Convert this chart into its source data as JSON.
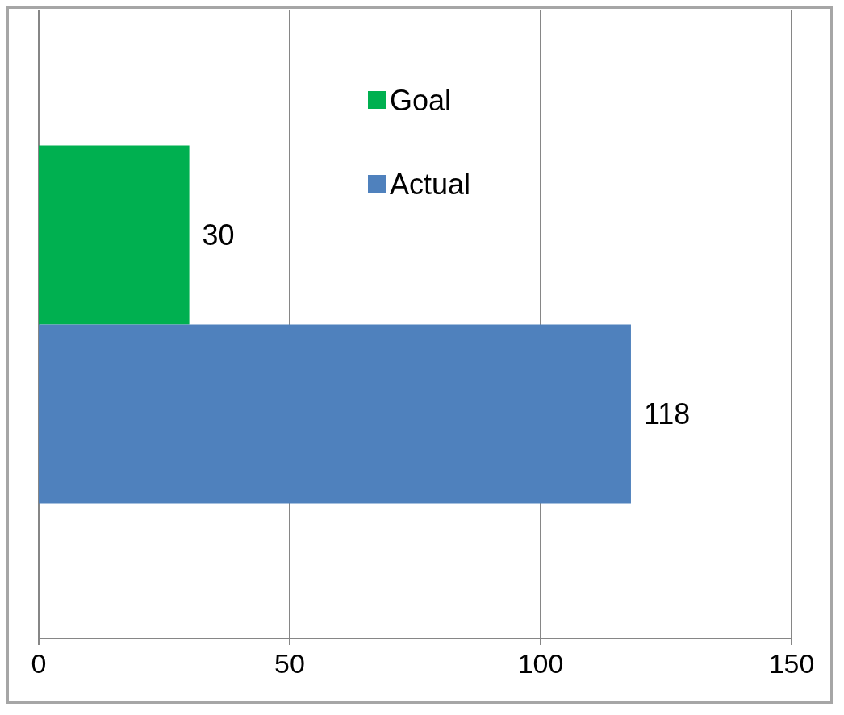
{
  "chart_data": {
    "type": "bar",
    "orientation": "horizontal",
    "categories": [
      null
    ],
    "series": [
      {
        "name": "Goal",
        "color": "#00b050",
        "values": [
          30
        ]
      },
      {
        "name": "Actual",
        "color": "#4f81bd",
        "values": [
          118
        ]
      }
    ],
    "xlim": [
      0,
      150
    ],
    "xticks": [
      0,
      50,
      100,
      150
    ],
    "grid": "x",
    "legend": "top",
    "data_labels": true
  }
}
